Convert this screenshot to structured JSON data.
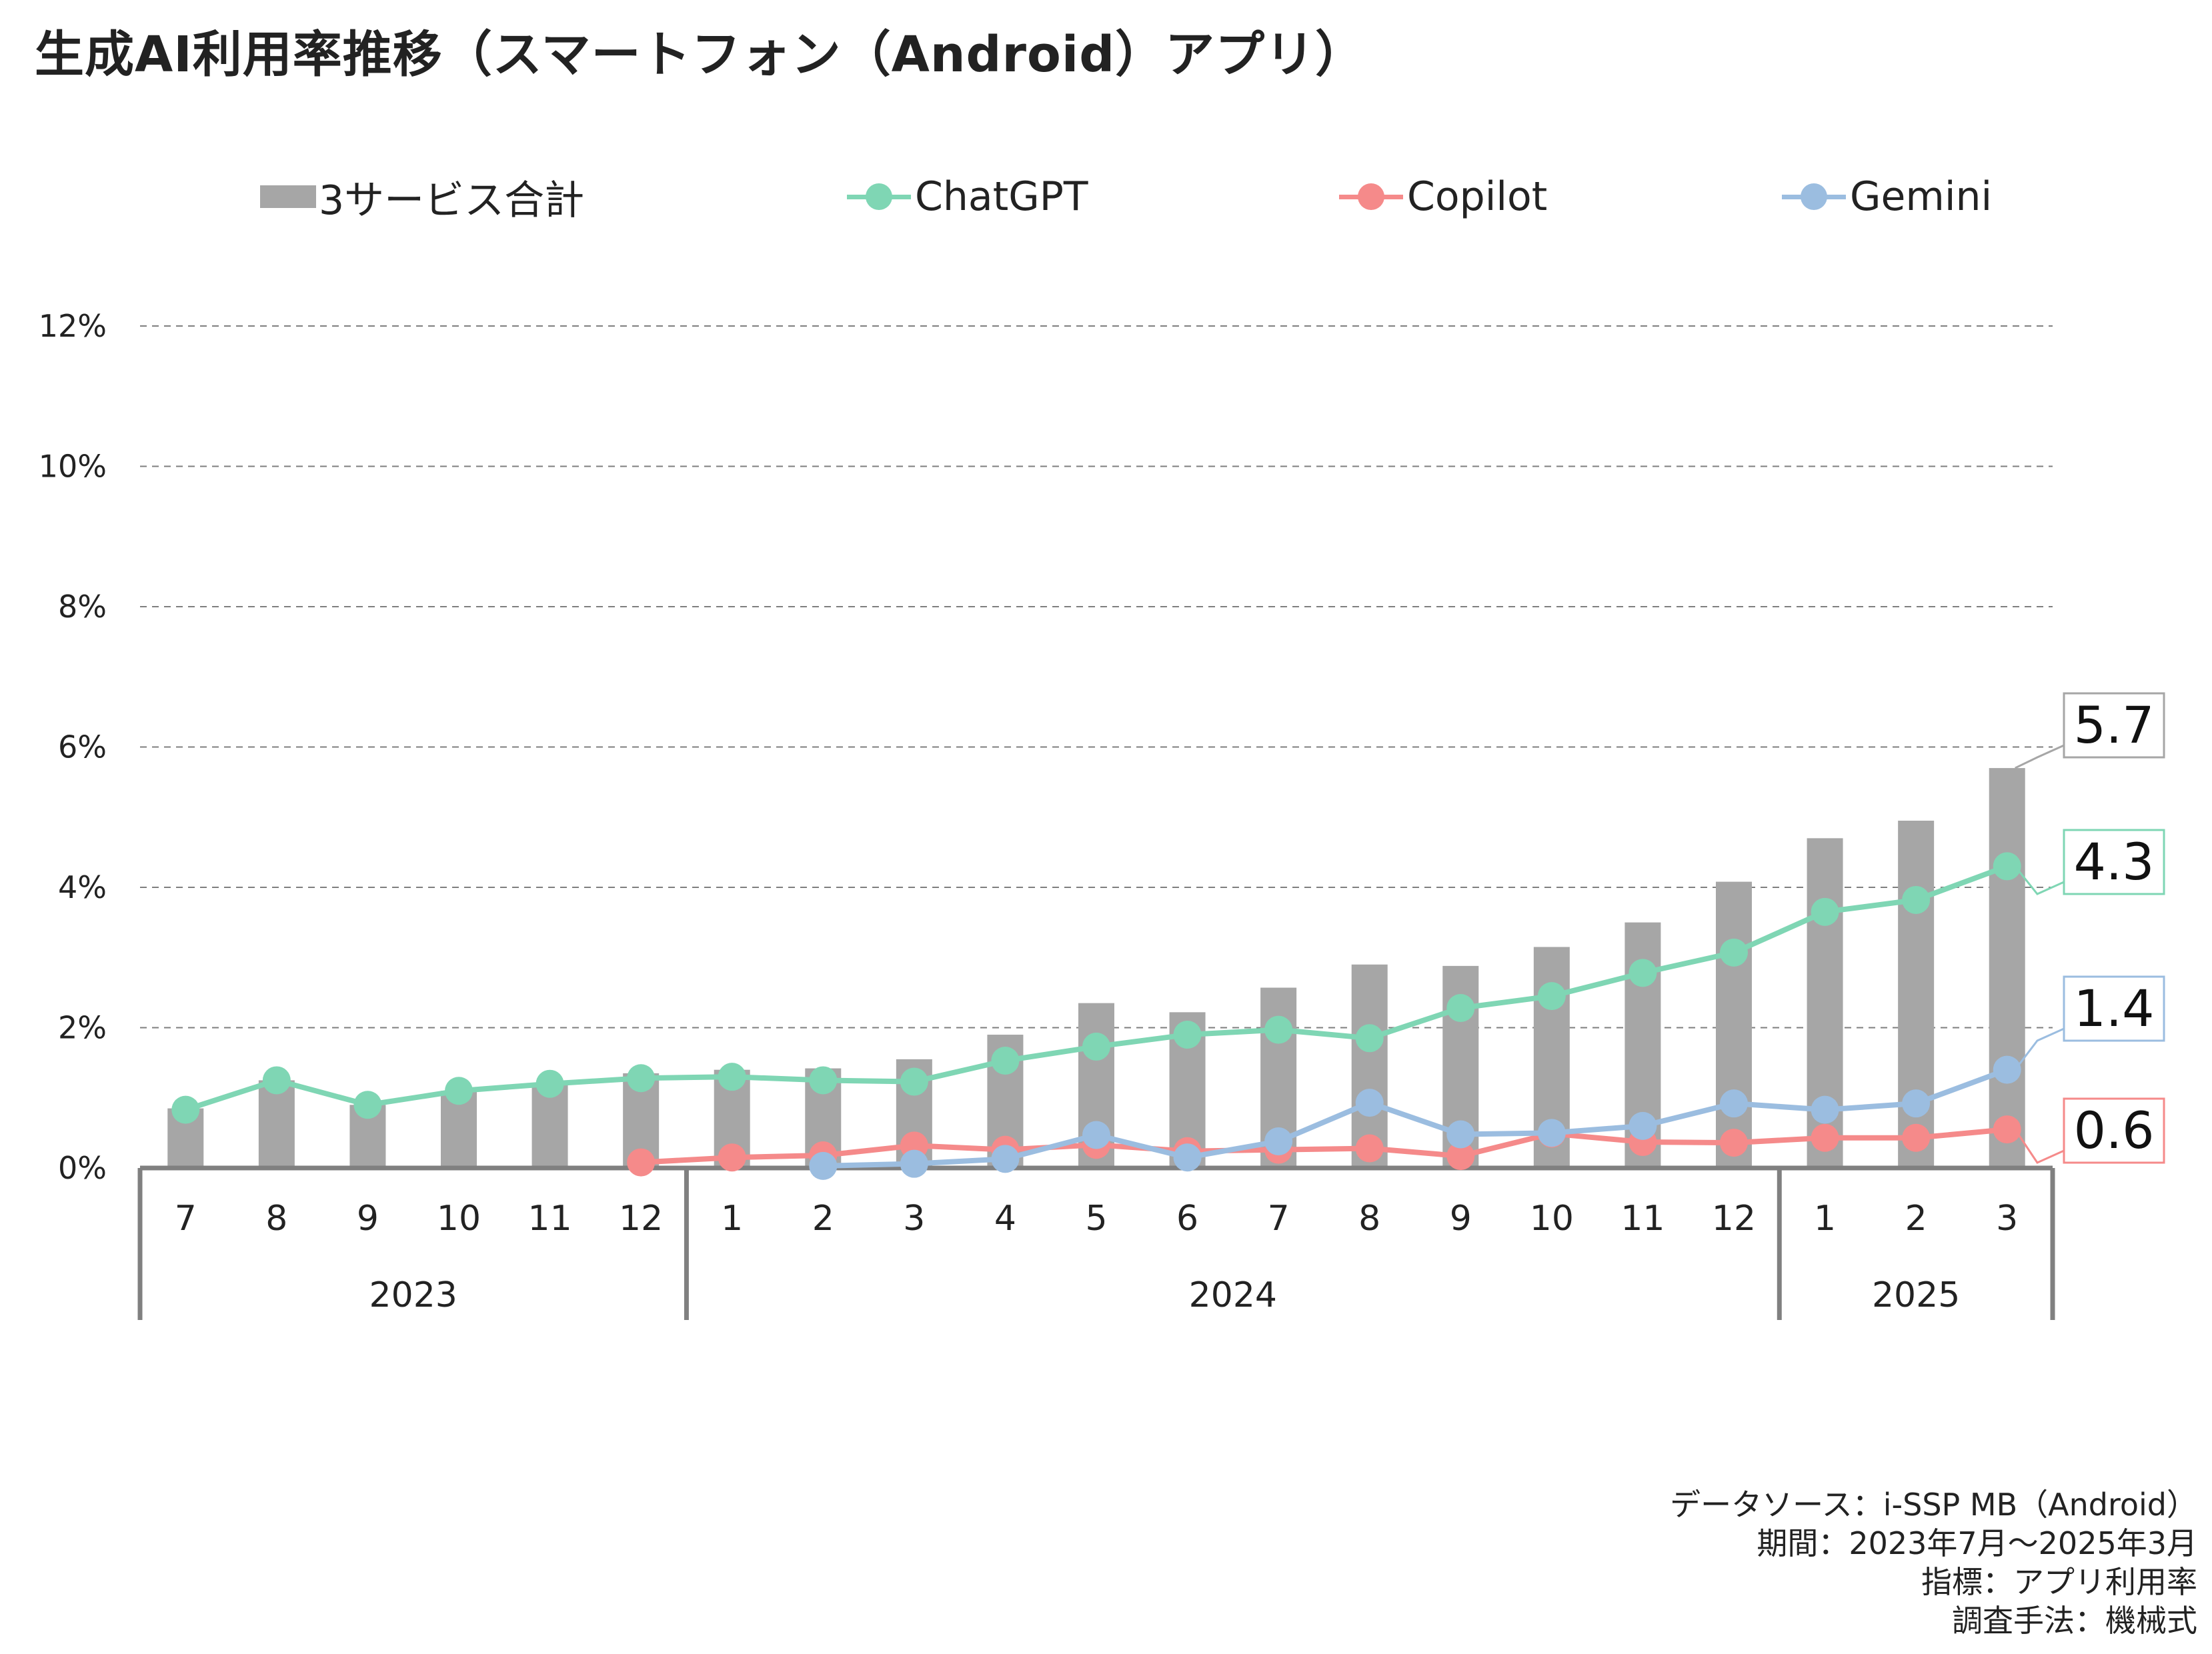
{
  "title": "生成AI利用率推移（スマートフォン（Android）アプリ）",
  "legend": {
    "total": "3サービス合計",
    "chatgpt": "ChatGPT",
    "copilot": "Copilot",
    "gemini": "Gemini"
  },
  "colors": {
    "total": "#a6a6a6",
    "chatgpt": "#7fd6b4",
    "copilot": "#f58a8a",
    "gemini": "#9bbde0",
    "grid": "#7f7f7f",
    "axis": "#808080"
  },
  "source": {
    "line1": "データソース：i-SSP MB（Android）",
    "line2": "期間：2023年7月～2025年3月",
    "line3": "指標：アプリ利用率",
    "line4": "調査手法：機械式"
  },
  "chart_data": {
    "type": "bar",
    "title": "生成AI利用率推移（スマートフォン（Android）アプリ）",
    "xlabel": "",
    "ylabel": "",
    "ylim": [
      0,
      12
    ],
    "y_ticks": [
      0,
      2,
      4,
      6,
      8,
      10,
      12
    ],
    "y_tick_labels": [
      "0%",
      "2%",
      "4%",
      "6%",
      "8%",
      "10%",
      "12%"
    ],
    "grid": true,
    "legend_position": "top",
    "categories": [
      "7",
      "8",
      "9",
      "10",
      "11",
      "12",
      "1",
      "2",
      "3",
      "4",
      "5",
      "6",
      "7",
      "8",
      "9",
      "10",
      "11",
      "12",
      "1",
      "2",
      "3"
    ],
    "year_groups": [
      {
        "label": "2023",
        "count": 6
      },
      {
        "label": "2024",
        "count": 12
      },
      {
        "label": "2025",
        "count": 3
      }
    ],
    "series": [
      {
        "name": "3サービス合計",
        "type": "bar",
        "values": [
          0.85,
          1.25,
          0.9,
          1.1,
          1.2,
          1.35,
          1.4,
          1.42,
          1.55,
          1.9,
          2.35,
          2.22,
          2.57,
          2.9,
          2.88,
          3.15,
          3.5,
          4.08,
          4.7,
          4.95,
          5.7
        ]
      },
      {
        "name": "ChatGPT",
        "type": "line",
        "values": [
          0.83,
          1.25,
          0.9,
          1.1,
          1.2,
          1.28,
          1.3,
          1.25,
          1.23,
          1.53,
          1.73,
          1.9,
          1.97,
          1.85,
          2.28,
          2.45,
          2.78,
          3.07,
          3.65,
          3.82,
          4.3
        ]
      },
      {
        "name": "Copilot",
        "type": "line",
        "values": [
          null,
          null,
          null,
          null,
          null,
          0.08,
          0.15,
          0.18,
          0.32,
          0.26,
          0.33,
          0.24,
          0.26,
          0.28,
          0.17,
          0.49,
          0.37,
          0.36,
          0.43,
          0.43,
          0.55
        ]
      },
      {
        "name": "Gemini",
        "type": "line",
        "values": [
          null,
          null,
          null,
          null,
          null,
          null,
          null,
          0.03,
          0.06,
          0.13,
          0.47,
          0.15,
          0.38,
          0.93,
          0.48,
          0.5,
          0.6,
          0.92,
          0.83,
          0.92,
          1.4
        ]
      }
    ],
    "annotations": [
      {
        "series": "3サービス合計",
        "label": "5.7"
      },
      {
        "series": "ChatGPT",
        "label": "4.3"
      },
      {
        "series": "Gemini",
        "label": "1.4"
      },
      {
        "series": "Copilot",
        "label": "0.6"
      }
    ]
  }
}
